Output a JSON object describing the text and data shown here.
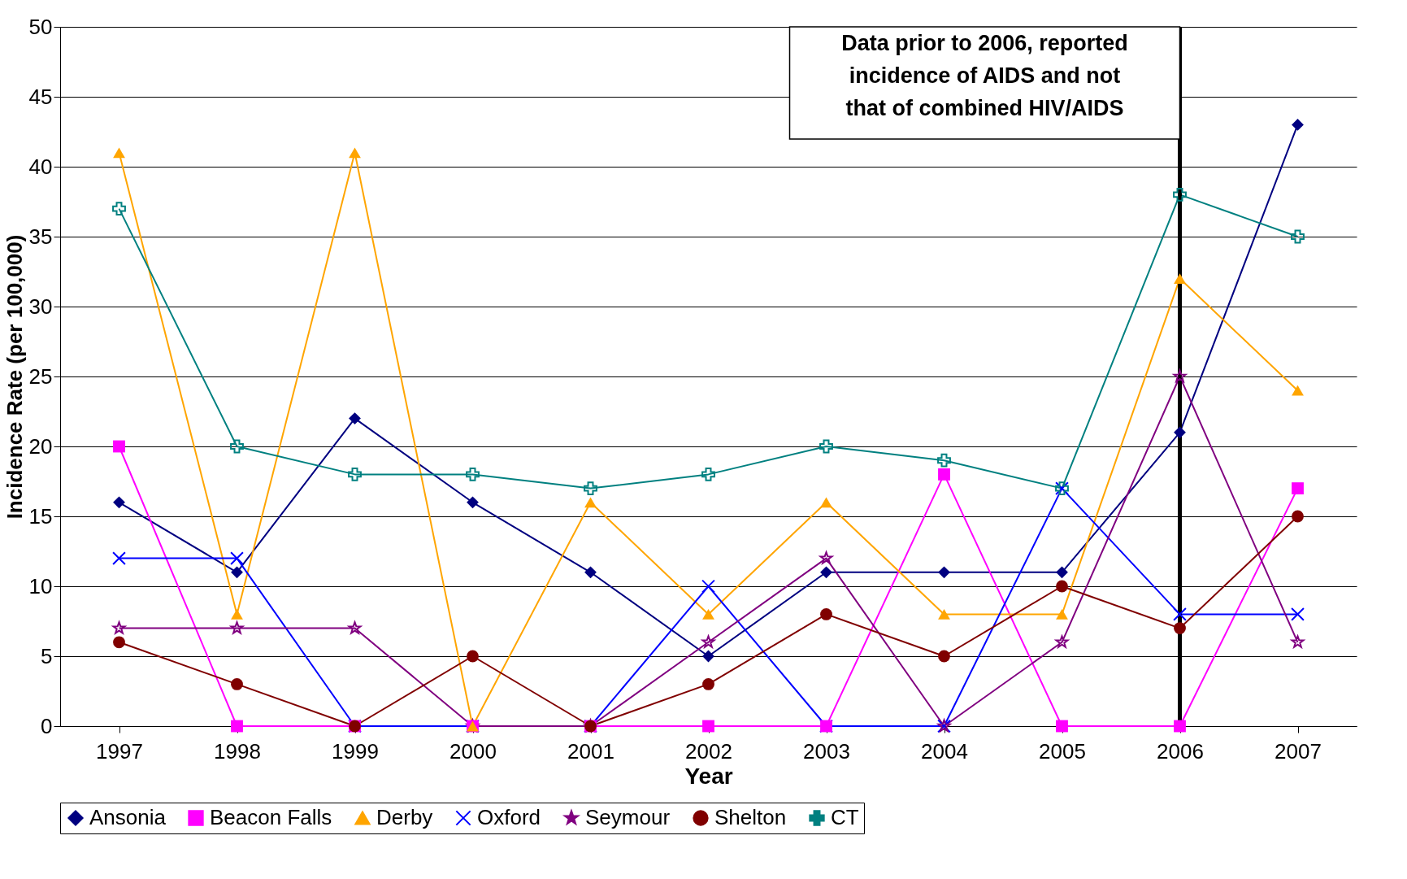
{
  "chart_data": {
    "type": "line",
    "xlabel": "Year",
    "ylabel": "Incidence Rate (per 100,000)",
    "categories": [
      "1997",
      "1998",
      "1999",
      "2000",
      "2001",
      "2002",
      "2003",
      "2004",
      "2005",
      "2006",
      "2007"
    ],
    "series": [
      {
        "name": "Ansonia",
        "color": "#000080",
        "marker": "diamond",
        "values": [
          16,
          11,
          22,
          16,
          11,
          5,
          11,
          11,
          11,
          21,
          43
        ]
      },
      {
        "name": "Beacon Falls",
        "color": "#ff00ff",
        "marker": "square",
        "values": [
          20,
          0,
          0,
          0,
          0,
          0,
          0,
          18,
          0,
          0,
          17
        ]
      },
      {
        "name": "Derby",
        "color": "#ffa500",
        "marker": "triangle",
        "values": [
          41,
          8,
          41,
          0,
          16,
          8,
          16,
          8,
          8,
          32,
          24
        ]
      },
      {
        "name": "Oxford",
        "color": "#0000ff",
        "marker": "cross",
        "values": [
          12,
          12,
          0,
          0,
          0,
          10,
          0,
          0,
          17,
          8,
          8
        ]
      },
      {
        "name": "Seymour",
        "color": "#800080",
        "marker": "star",
        "values": [
          7,
          7,
          7,
          0,
          0,
          6,
          12,
          0,
          6,
          25,
          6
        ]
      },
      {
        "name": "Shelton",
        "color": "#800000",
        "marker": "circle",
        "values": [
          6,
          3,
          0,
          5,
          0,
          3,
          8,
          5,
          10,
          7,
          15
        ]
      },
      {
        "name": "CT",
        "color": "#008080",
        "marker": "plus",
        "values": [
          37,
          20,
          18,
          18,
          17,
          18,
          20,
          19,
          17,
          38,
          35
        ]
      }
    ],
    "ylim": [
      0,
      50
    ],
    "yticks": [
      0,
      5,
      10,
      15,
      20,
      25,
      30,
      35,
      40,
      45,
      50
    ],
    "grid": "y",
    "legend": "bottom",
    "ref_lines": [
      {
        "axis": "x",
        "value": "2006",
        "label": "Data prior to 2006, reported incidence of AIDS and not that of combined HIV/AIDS",
        "color": "#000000"
      }
    ]
  }
}
